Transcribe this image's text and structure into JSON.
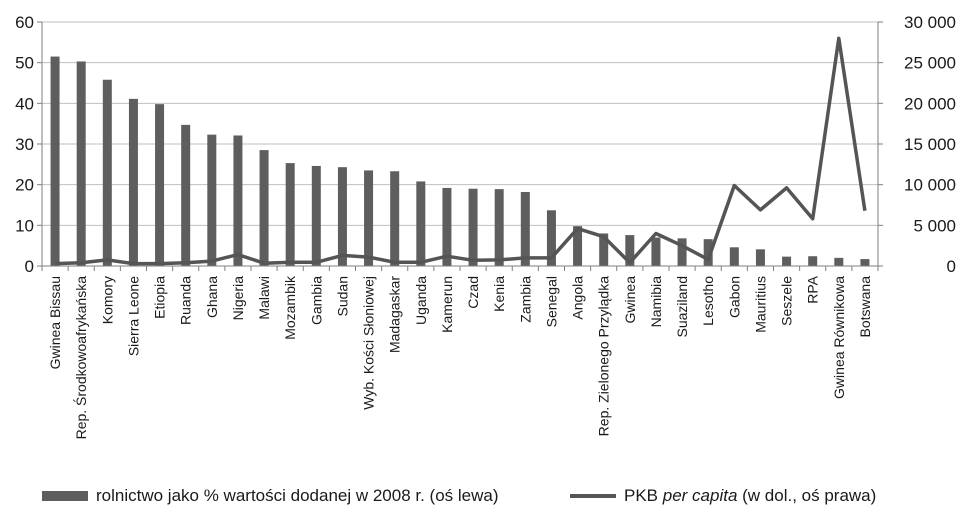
{
  "chart_data": {
    "type": "bar+line",
    "categories": [
      "Gwinea Bissau",
      "Rep. Środkowoafrykańska",
      "Komory",
      "Sierra Leone",
      "Etiopia",
      "Ruanda",
      "Ghana",
      "Nigeria",
      "Malawi",
      "Mozambik",
      "Gambia",
      "Sudan",
      "Wyb. Kości Słoniowej",
      "Madagaskar",
      "Uganda",
      "Kamerun",
      "Czad",
      "Kenia",
      "Zambia",
      "Senegal",
      "Angola",
      "Rep. Zielonego Przylądka",
      "Gwinea",
      "Namibia",
      "Suaziland",
      "Lesotho",
      "Gabon",
      "Mauritius",
      "Seszele",
      "RPA",
      "Gwinea Równikowa",
      "Botswana"
    ],
    "series": [
      {
        "name": "rolnictwo jako % wartości dodanej w 2008 r. (oś lewa)",
        "type": "bar",
        "axis": "left",
        "values": [
          51.5,
          50.3,
          45.8,
          41.1,
          39.8,
          34.7,
          32.3,
          32.1,
          28.5,
          25.3,
          24.6,
          24.3,
          23.5,
          23.3,
          20.8,
          19.2,
          19.0,
          18.9,
          18.2,
          13.7,
          9.8,
          8.0,
          7.6,
          7.0,
          6.8,
          6.6,
          4.6,
          4.1,
          2.3,
          2.4,
          2.0,
          1.7
        ]
      },
      {
        "name": "PKB per capita (w dol., oś prawa)",
        "type": "line",
        "axis": "right",
        "values": [
          300,
          400,
          750,
          300,
          300,
          400,
          600,
          1400,
          350,
          450,
          450,
          1300,
          1100,
          450,
          450,
          1200,
          700,
          750,
          1000,
          1000,
          4600,
          3600,
          400,
          4000,
          2500,
          800,
          9900,
          6900,
          9600,
          5800,
          28000,
          6800
        ]
      }
    ],
    "y_left": {
      "ylim": [
        0,
        60
      ],
      "ticks": [
        "0",
        "10",
        "20",
        "30",
        "40",
        "50",
        "60"
      ]
    },
    "y_right": {
      "ylim": [
        0,
        30000
      ],
      "ticks": [
        "0",
        "5 000",
        "10 000",
        "15 000",
        "20 000",
        "25 000",
        "30 000"
      ]
    },
    "grid": true,
    "legend_position": "bottom",
    "colors": {
      "bar": "#5e5e5e",
      "line": "#555555",
      "grid": "#bfbfbf",
      "axis": "#7f7f7f"
    }
  },
  "legend": {
    "bar_label": "rolnictwo jako % wartości dodanej w 2008 r. (oś lewa)",
    "line_prefix": "PKB ",
    "line_em": "per capita",
    "line_suffix": " (w dol., oś prawa)"
  }
}
